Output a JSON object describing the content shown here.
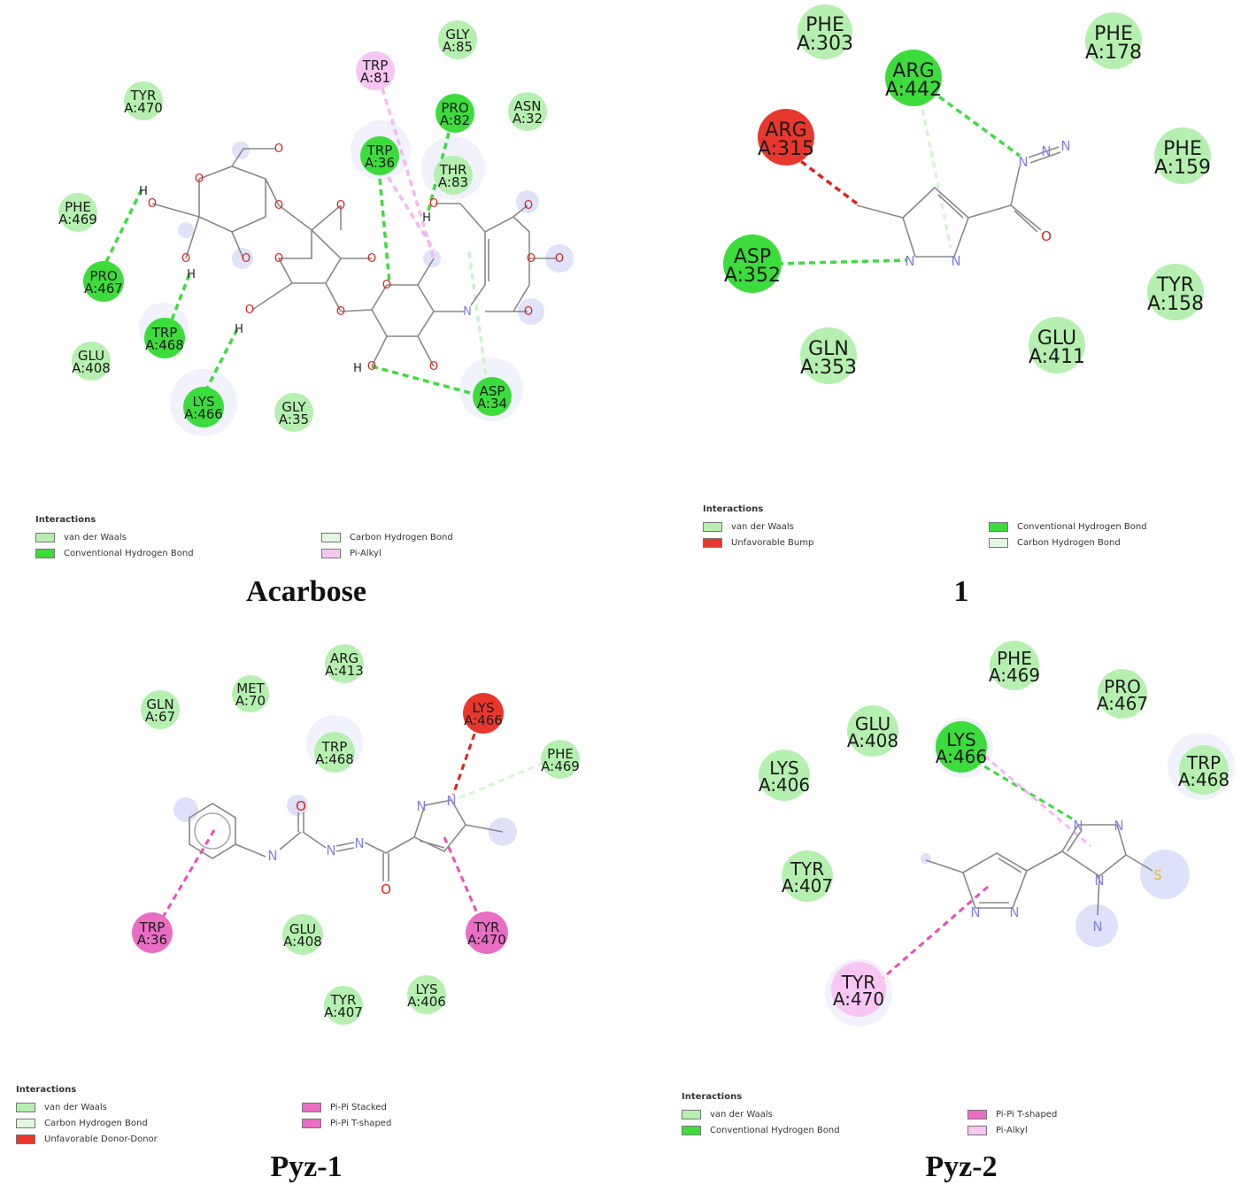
{
  "colors": {
    "vdw": "#b6f0b0",
    "conv_hbond": "#3ddc3d",
    "carbon_hbond": "#e2f8e0",
    "pi_alkyl": "#f7c6f3",
    "unfavorable": "#e8382e",
    "pi_stack": "#ea6dc4",
    "bond": "#888888",
    "oxygen": "#e02020",
    "nitrogen": "#8080e8",
    "sulfur": "#e8b830"
  },
  "legend_title": "Interactions",
  "legend_labels": {
    "vdw": "van der Waals",
    "conv_hbond": "Conventional Hydrogen Bond",
    "carbon_hbond": "Carbon Hydrogen Bond",
    "pi_alkyl": "Pi-Alkyl",
    "unfavorable_bump": "Unfavorable Bump",
    "unfavorable_donor": "Unfavorable Donor-Donor",
    "pi_stacked": "Pi-Pi Stacked",
    "pi_tshaped": "Pi-Pi T-shaped"
  },
  "panels": [
    {
      "caption": "Acarbose",
      "legend_col1": [
        "vdw",
        "conv_hbond"
      ],
      "legend_col2": [
        "carbon_hbond",
        "pi_alkyl"
      ],
      "residues": [
        {
          "name": "GLY",
          "id": "A:85",
          "type": "vdw"
        },
        {
          "name": "TRP",
          "id": "A:81",
          "type": "pi_alkyl"
        },
        {
          "name": "TYR",
          "id": "A:470",
          "type": "vdw"
        },
        {
          "name": "PRO",
          "id": "A:82",
          "type": "conv_hbond"
        },
        {
          "name": "ASN",
          "id": "A:32",
          "type": "vdw"
        },
        {
          "name": "TRP",
          "id": "A:36",
          "type": "conv_hbond"
        },
        {
          "name": "THR",
          "id": "A:83",
          "type": "vdw"
        },
        {
          "name": "PHE",
          "id": "A:469",
          "type": "vdw"
        },
        {
          "name": "PRO",
          "id": "A:467",
          "type": "conv_hbond"
        },
        {
          "name": "TRP",
          "id": "A:468",
          "type": "conv_hbond"
        },
        {
          "name": "GLU",
          "id": "A:408",
          "type": "vdw"
        },
        {
          "name": "LYS",
          "id": "A:466",
          "type": "conv_hbond"
        },
        {
          "name": "GLY",
          "id": "A:35",
          "type": "vdw"
        },
        {
          "name": "ASP",
          "id": "A:34",
          "type": "conv_hbond"
        }
      ],
      "atoms": [
        "O",
        "O",
        "O",
        "O",
        "O",
        "O",
        "O",
        "O",
        "O",
        "O",
        "O",
        "O",
        "O",
        "O",
        "O",
        "O",
        "O",
        "O",
        "O",
        "N",
        "H",
        "H",
        "H",
        "H",
        "H"
      ]
    },
    {
      "caption": "1",
      "legend_col1": [
        "vdw",
        "unfavorable_bump"
      ],
      "legend_col2": [
        "conv_hbond",
        "carbon_hbond"
      ],
      "residues": [
        {
          "name": "PHE",
          "id": "A:303",
          "type": "vdw"
        },
        {
          "name": "PHE",
          "id": "A:178",
          "type": "vdw"
        },
        {
          "name": "ARG",
          "id": "A:442",
          "type": "conv_hbond"
        },
        {
          "name": "ARG",
          "id": "A:315",
          "type": "unfavorable"
        },
        {
          "name": "PHE",
          "id": "A:159",
          "type": "vdw"
        },
        {
          "name": "ASP",
          "id": "A:352",
          "type": "conv_hbond"
        },
        {
          "name": "TYR",
          "id": "A:158",
          "type": "vdw"
        },
        {
          "name": "GLN",
          "id": "A:353",
          "type": "vdw"
        },
        {
          "name": "GLU",
          "id": "A:411",
          "type": "vdw"
        }
      ],
      "atoms": [
        "N",
        "N",
        "N",
        "N",
        "N",
        "O"
      ]
    },
    {
      "caption": "Pyz-1",
      "legend_col1": [
        "vdw",
        "carbon_hbond",
        "unfavorable_donor"
      ],
      "legend_col2": [
        "pi_stacked",
        "pi_tshaped"
      ],
      "residues": [
        {
          "name": "ARG",
          "id": "A:413",
          "type": "vdw"
        },
        {
          "name": "MET",
          "id": "A:70",
          "type": "vdw"
        },
        {
          "name": "GLN",
          "id": "A:67",
          "type": "vdw"
        },
        {
          "name": "LYS",
          "id": "A:466",
          "type": "unfavorable"
        },
        {
          "name": "TRP",
          "id": "A:468",
          "type": "vdw"
        },
        {
          "name": "PHE",
          "id": "A:469",
          "type": "vdw"
        },
        {
          "name": "TRP",
          "id": "A:36",
          "type": "pi_stack"
        },
        {
          "name": "GLU",
          "id": "A:408",
          "type": "vdw"
        },
        {
          "name": "TYR",
          "id": "A:470",
          "type": "pi_stack"
        },
        {
          "name": "TYR",
          "id": "A:407",
          "type": "vdw"
        },
        {
          "name": "LYS",
          "id": "A:406",
          "type": "vdw"
        }
      ],
      "atoms": [
        "O",
        "N",
        "N",
        "N",
        "O",
        "N",
        "N"
      ]
    },
    {
      "caption": "Pyz-2",
      "legend_col1": [
        "vdw",
        "conv_hbond"
      ],
      "legend_col2": [
        "pi_tshaped",
        "pi_alkyl"
      ],
      "residues": [
        {
          "name": "PHE",
          "id": "A:469",
          "type": "vdw"
        },
        {
          "name": "PRO",
          "id": "A:467",
          "type": "vdw"
        },
        {
          "name": "GLU",
          "id": "A:408",
          "type": "vdw"
        },
        {
          "name": "LYS",
          "id": "A:466",
          "type": "conv_hbond"
        },
        {
          "name": "TRP",
          "id": "A:468",
          "type": "vdw"
        },
        {
          "name": "LYS",
          "id": "A:406",
          "type": "vdw"
        },
        {
          "name": "TYR",
          "id": "A:407",
          "type": "vdw"
        },
        {
          "name": "TYR",
          "id": "A:470",
          "type": "pi_alkyl"
        }
      ],
      "atoms": [
        "N",
        "N",
        "N",
        "N",
        "N",
        "N",
        "S"
      ]
    }
  ]
}
